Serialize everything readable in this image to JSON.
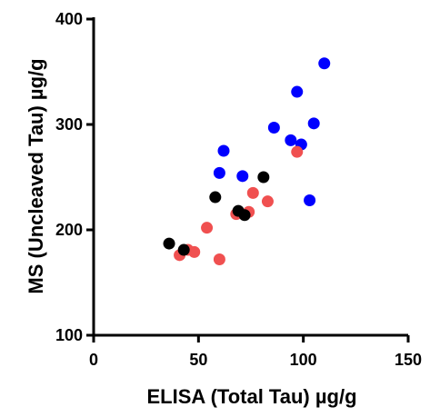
{
  "chart_data": {
    "type": "scatter",
    "title": "",
    "xlabel": "ELISA (Total Tau) µg/g",
    "ylabel": "MS (Uncleaved Tau) µg/g",
    "xlim": [
      0,
      150
    ],
    "ylim": [
      100,
      400
    ],
    "xticks": [
      0,
      50,
      100,
      150
    ],
    "yticks": [
      100,
      200,
      300,
      400
    ],
    "grid": false,
    "legend": "none",
    "series": [
      {
        "color": "#0000ff",
        "points": [
          {
            "x": 110,
            "y": 358
          },
          {
            "x": 97,
            "y": 331
          },
          {
            "x": 105,
            "y": 301
          },
          {
            "x": 86,
            "y": 297
          },
          {
            "x": 94,
            "y": 285
          },
          {
            "x": 99,
            "y": 281
          },
          {
            "x": 62,
            "y": 275
          },
          {
            "x": 60,
            "y": 254
          },
          {
            "x": 71,
            "y": 251
          },
          {
            "x": 103,
            "y": 228
          }
        ]
      },
      {
        "color": "#f05050",
        "points": [
          {
            "x": 97,
            "y": 274
          },
          {
            "x": 76,
            "y": 235
          },
          {
            "x": 83,
            "y": 227
          },
          {
            "x": 74,
            "y": 217
          },
          {
            "x": 68,
            "y": 215
          },
          {
            "x": 54,
            "y": 202
          },
          {
            "x": 48,
            "y": 179
          },
          {
            "x": 45,
            "y": 181
          },
          {
            "x": 41,
            "y": 176
          },
          {
            "x": 60,
            "y": 172
          }
        ]
      },
      {
        "color": "#000000",
        "points": [
          {
            "x": 81,
            "y": 250
          },
          {
            "x": 58,
            "y": 231
          },
          {
            "x": 69,
            "y": 218
          },
          {
            "x": 72,
            "y": 214
          },
          {
            "x": 36,
            "y": 187
          },
          {
            "x": 43,
            "y": 181
          }
        ]
      }
    ]
  }
}
